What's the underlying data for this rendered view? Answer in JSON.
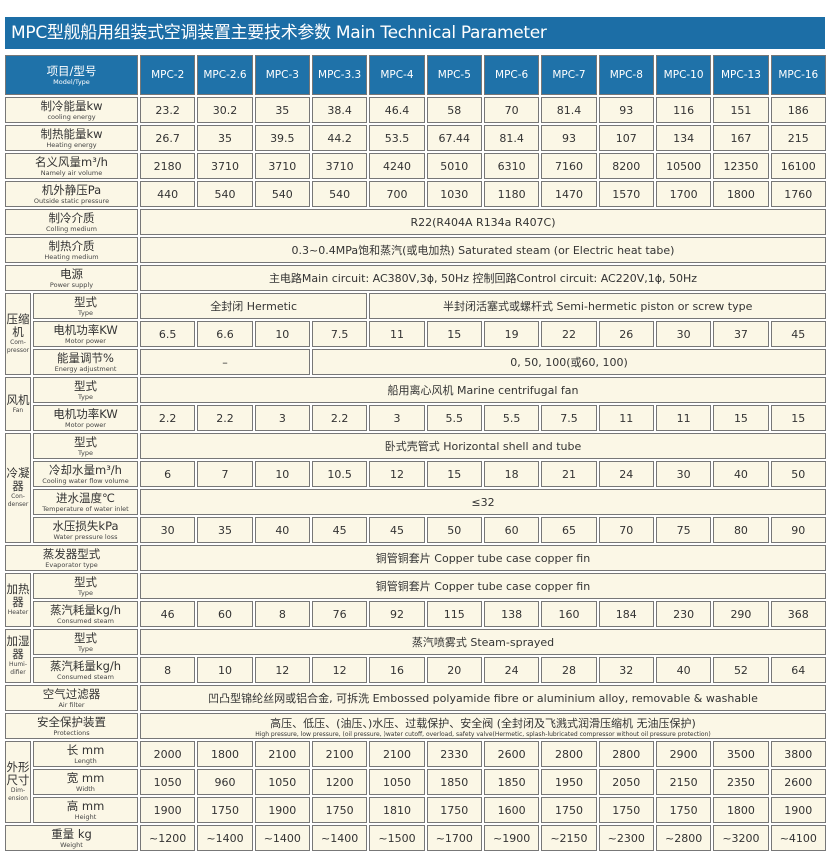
{
  "title": "MPC型舰船用组装式空调装置主要技术参数 Main Technical Parameter",
  "header": {
    "cn": "项目/型号",
    "en": "Model/Type",
    "models": [
      "MPC-2",
      "MPC-2.6",
      "MPC-3",
      "MPC-3.3",
      "MPC-4",
      "MPC-5",
      "MPC-6",
      "MPC-7",
      "MPC-8",
      "MPC-10",
      "MPC-13",
      "MPC-16"
    ]
  },
  "colors": {
    "header_bg": "#1f72a9",
    "cell_bg": "#fbf7e6"
  },
  "sections": [
    {
      "rows": [
        {
          "cn": "制冷能量kw",
          "en": "cooling energy",
          "values": [
            "23.2",
            "30.2",
            "35",
            "38.4",
            "46.4",
            "58",
            "70",
            "81.4",
            "93",
            "116",
            "151",
            "186"
          ]
        }
      ]
    },
    {
      "rows": [
        {
          "cn": "制热能量kw",
          "en": "Heating energy",
          "values": [
            "26.7",
            "35",
            "39.5",
            "44.2",
            "53.5",
            "67.44",
            "81.4",
            "93",
            "107",
            "134",
            "167",
            "215"
          ]
        }
      ]
    },
    {
      "rows": [
        {
          "cn": "名义风量m³/h",
          "en": "Namely air volume",
          "values": [
            "2180",
            "3710",
            "3710",
            "3710",
            "4240",
            "5010",
            "6310",
            "7160",
            "8200",
            "10500",
            "12350",
            "16100"
          ]
        }
      ]
    },
    {
      "rows": [
        {
          "cn": "机外静压Pa",
          "en": "Outside static pressure",
          "values": [
            "440",
            "540",
            "540",
            "540",
            "700",
            "1030",
            "1180",
            "1470",
            "1570",
            "1700",
            "1800",
            "1760"
          ]
        }
      ]
    },
    {
      "rows": [
        {
          "cn": "制冷介质",
          "en": "Colling medium",
          "cells": [
            {
              "text": "R22(R404A R134a R407C)",
              "span": 12
            }
          ]
        }
      ]
    },
    {
      "rows": [
        {
          "cn": "制热介质",
          "en": "Heating medium",
          "cells": [
            {
              "text": "0.3~0.4MPa饱和蒸汽(或电加热)  Saturated steam (or Electric heat tabe)",
              "span": 12
            }
          ]
        }
      ]
    },
    {
      "rows": [
        {
          "cn": "电源",
          "en": "Power supply",
          "cells": [
            {
              "text": "主电路Main circuit: AC380V,3ϕ, 50Hz      控制回路Control circuit: AC220V,1ϕ, 50Hz",
              "span": 12
            }
          ]
        }
      ]
    },
    {
      "group": {
        "cn": "压缩机",
        "en": "Com-pressor"
      },
      "rows": [
        {
          "cn": "型式",
          "en": "Type",
          "cells": [
            {
              "text": "全封闭  Hermetic",
              "span": 4
            },
            {
              "text": "半封闭活塞式或螺杆式  Semi-hermetic piston or screw type",
              "span": 8
            }
          ]
        },
        {
          "cn": "电机功率KW",
          "en": "Motor power",
          "values": [
            "6.5",
            "6.6",
            "10",
            "7.5",
            "11",
            "15",
            "19",
            "22",
            "26",
            "30",
            "37",
            "45"
          ]
        },
        {
          "cn": "能量调节%",
          "en": "Energy adjustment",
          "cells": [
            {
              "text": "–",
              "span": 3
            },
            {
              "text": "0, 50, 100(或60, 100)",
              "span": 9
            }
          ]
        }
      ]
    },
    {
      "group": {
        "cn": "风机",
        "en": "Fan"
      },
      "rows": [
        {
          "cn": "型式",
          "en": "Type",
          "cells": [
            {
              "text": "船用离心风机  Marine centrifugal fan",
              "span": 12
            }
          ]
        },
        {
          "cn": "电机功率KW",
          "en": "Motor power",
          "values": [
            "2.2",
            "2.2",
            "3",
            "2.2",
            "3",
            "5.5",
            "5.5",
            "7.5",
            "11",
            "11",
            "15",
            "15"
          ]
        }
      ]
    },
    {
      "group": {
        "cn": "冷凝器",
        "en": "Con-denser"
      },
      "rows": [
        {
          "cn": "型式",
          "en": "Type",
          "cells": [
            {
              "text": "卧式壳管式  Horizontal shell and tube",
              "span": 12
            }
          ]
        },
        {
          "cn": "冷却水量m³/h",
          "en": "Cooling water flow volume",
          "values": [
            "6",
            "7",
            "10",
            "10.5",
            "12",
            "15",
            "18",
            "21",
            "24",
            "30",
            "40",
            "50"
          ]
        },
        {
          "cn": "进水温度℃",
          "en": "Temperature of water inlet",
          "cells": [
            {
              "text": "≤32",
              "span": 12
            }
          ]
        },
        {
          "cn": "水压损失kPa",
          "en": "Water pressure loss",
          "values": [
            "30",
            "35",
            "40",
            "45",
            "45",
            "50",
            "60",
            "65",
            "70",
            "75",
            "80",
            "90"
          ]
        }
      ]
    },
    {
      "rows": [
        {
          "cn": "蒸发器型式",
          "en": "Evaporator type",
          "cells": [
            {
              "text": "铜管铜套片 Copper tube case copper fin",
              "span": 12
            }
          ]
        }
      ]
    },
    {
      "group": {
        "cn": "加热器",
        "en": "Heater"
      },
      "rows": [
        {
          "cn": "型式",
          "en": "Type",
          "cells": [
            {
              "text": "铜管铜套片 Copper tube case copper fin",
              "span": 12
            }
          ]
        },
        {
          "cn": "蒸汽耗量kg/h",
          "en": "Consumed steam",
          "values": [
            "46",
            "60",
            "8",
            "76",
            "92",
            "115",
            "138",
            "160",
            "184",
            "230",
            "290",
            "368"
          ]
        }
      ]
    },
    {
      "group": {
        "cn": "加湿器",
        "en": "Humi-difier"
      },
      "rows": [
        {
          "cn": "型式",
          "en": "Type",
          "cells": [
            {
              "text": "蒸汽喷雾式 Steam-sprayed",
              "span": 12
            }
          ]
        },
        {
          "cn": "蒸汽耗量kg/h",
          "en": "Consumed steam",
          "values": [
            "8",
            "10",
            "12",
            "12",
            "16",
            "20",
            "24",
            "28",
            "32",
            "40",
            "52",
            "64"
          ]
        }
      ]
    },
    {
      "rows": [
        {
          "cn": "空气过滤器",
          "en": "Air filter",
          "cells": [
            {
              "text": "凹凸型锦纶丝网或铝合金, 可拆洗 Embossed polyamide fibre or aluminium alloy, removable & washable",
              "span": 12
            }
          ]
        }
      ]
    },
    {
      "rows": [
        {
          "cn": "安全保护装置",
          "en": "Protections",
          "cells": [
            {
              "text": "高压、低压、(油压、)水压、过载保护、安全阀 (全封闭及飞溅式润滑压缩机 无油压保护)",
              "sub": "High pressure, low pressure, (oil pressure, )water cutoff, overload, safety valve(Hermetic, splash-lubricated compressor without oil pressure protection)",
              "span": 12
            }
          ]
        }
      ]
    },
    {
      "group": {
        "cn": "外形尺寸",
        "en": "Dim-ension"
      },
      "rows": [
        {
          "cn": "长 mm",
          "en": "Length",
          "values": [
            "2000",
            "1800",
            "2100",
            "2100",
            "2100",
            "2330",
            "2600",
            "2800",
            "2800",
            "2900",
            "3500",
            "3800"
          ]
        },
        {
          "cn": "宽 mm",
          "en": "Width",
          "values": [
            "1050",
            "960",
            "1050",
            "1200",
            "1050",
            "1850",
            "1850",
            "1950",
            "2050",
            "2150",
            "2350",
            "2600"
          ]
        },
        {
          "cn": "高 mm",
          "en": "Height",
          "values": [
            "1900",
            "1750",
            "1900",
            "1750",
            "1810",
            "1750",
            "1600",
            "1750",
            "1750",
            "1750",
            "1800",
            "1900"
          ]
        }
      ]
    },
    {
      "rows": [
        {
          "cn": "重量 kg",
          "en": "Weight",
          "values": [
            "~1200",
            "~1400",
            "~1400",
            "~1400",
            "~1500",
            "~1700",
            "~1900",
            "~2150",
            "~2300",
            "~2800",
            "~3200",
            "~4100"
          ]
        }
      ]
    }
  ]
}
